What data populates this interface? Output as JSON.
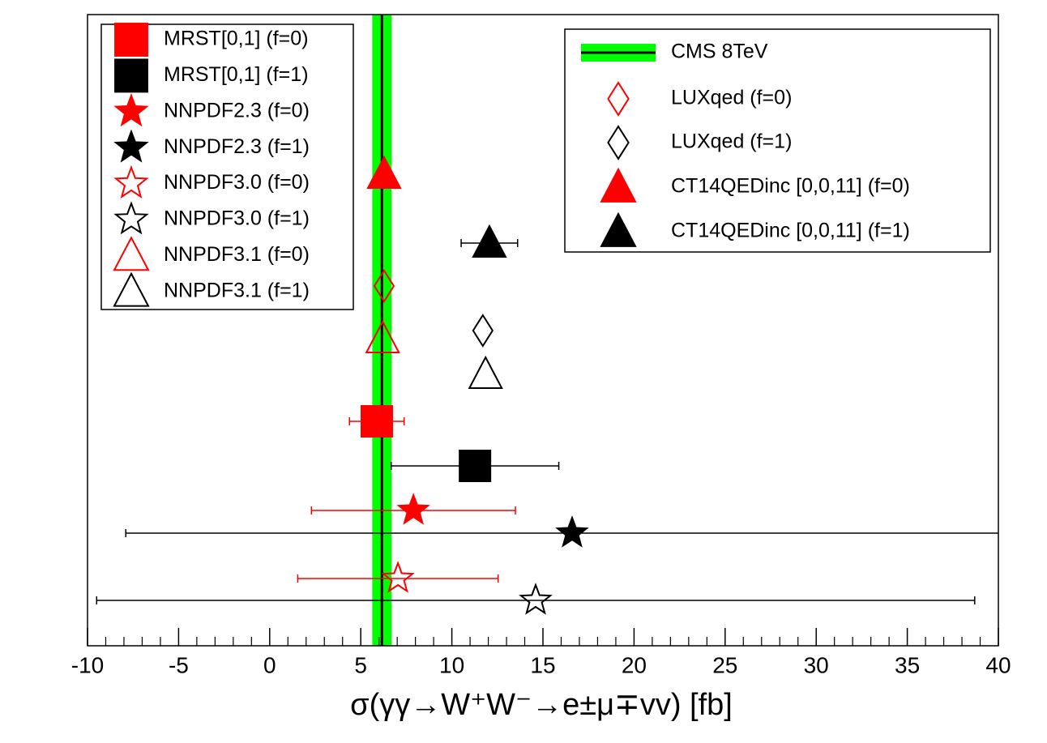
{
  "chart_data": {
    "type": "scatter",
    "x_label": "σ(γγ→W⁺W⁻→e±μ∓vv) [fb]",
    "xlim": [
      -10,
      40
    ],
    "xticks": [
      -10,
      -5,
      0,
      5,
      10,
      15,
      20,
      25,
      30,
      35,
      40
    ],
    "reference": {
      "name": "CMS 8TeV",
      "value": 6.16,
      "error": 0.53,
      "color": "#00ff00",
      "line_color": "#000000"
    },
    "series": [
      {
        "name": "MRST[0,1] (f=0)",
        "color": "#ff0000",
        "marker": "square",
        "filled": true,
        "values": [
          5.88
        ],
        "errors": [
          1.5
        ]
      },
      {
        "name": "MRST[0,1] (f=1)",
        "color": "#000000",
        "marker": "square",
        "filled": true,
        "values": [
          11.27
        ],
        "errors": [
          4.6
        ]
      },
      {
        "name": "NNPDF2.3 (f=0)",
        "color": "#ff0000",
        "marker": "star",
        "filled": true,
        "values": [
          7.89
        ],
        "errors": [
          5.6
        ]
      },
      {
        "name": "NNPDF2.3 (f=1)",
        "color": "#000000",
        "marker": "star",
        "filled": true,
        "values": [
          16.6
        ],
        "errors": [
          24.5
        ]
      },
      {
        "name": "NNPDF3.0 (f=0)",
        "color": "#ff0000",
        "marker": "star",
        "filled": false,
        "values": [
          7.04
        ],
        "errors": [
          5.5
        ]
      },
      {
        "name": "NNPDF3.0 (f=1)",
        "color": "#000000",
        "marker": "star",
        "filled": false,
        "values": [
          14.6
        ],
        "errors": [
          24.1
        ]
      },
      {
        "name": "NNPDF3.1 (f=0)",
        "color": "#ff0000",
        "marker": "triangle",
        "filled": false,
        "values": [
          6.2
        ]
      },
      {
        "name": "NNPDF3.1 (f=1)",
        "color": "#000000",
        "marker": "triangle",
        "filled": false,
        "values": [
          11.85
        ]
      },
      {
        "name": "LUXqed (f=0)",
        "color": "#ff0000",
        "marker": "diamond",
        "filled": false,
        "values": [
          6.28
        ]
      },
      {
        "name": "LUXqed (f=1)",
        "color": "#000000",
        "marker": "diamond",
        "filled": false,
        "values": [
          11.7
        ]
      },
      {
        "name": "CT14QEDinc [0,0,11] (f=0)",
        "color": "#ff0000",
        "marker": "triangle",
        "filled": true,
        "values": [
          6.28
        ]
      },
      {
        "name": "CT14QEDinc [0,0,11] (f=1)",
        "color": "#000000",
        "marker": "triangle",
        "filled": true,
        "values": [
          12.06
        ],
        "errors": [
          1.55
        ]
      }
    ]
  }
}
